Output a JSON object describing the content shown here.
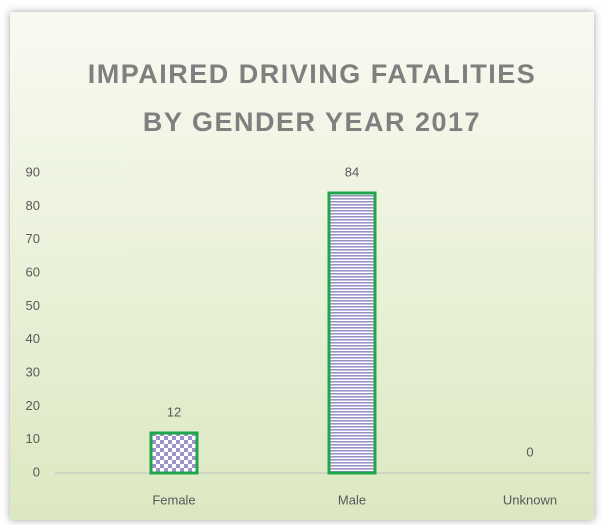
{
  "chart_data": {
    "type": "bar",
    "title": [
      "IMPAIRED DRIVING FATALITIES",
      "BY GENDER YEAR 2017"
    ],
    "categories": [
      "Female",
      "Male",
      "Unknown"
    ],
    "values": [
      12,
      84,
      0
    ],
    "color": "#9d92c8",
    "edgecolor": "#1fa64a",
    "fill_patterns": [
      "checker",
      "stripes",
      "stripes"
    ],
    "ylim": [
      0,
      90
    ],
    "yticks": [
      0,
      10,
      20,
      30,
      40,
      50,
      60,
      70,
      80,
      90
    ],
    "grid": false
  }
}
